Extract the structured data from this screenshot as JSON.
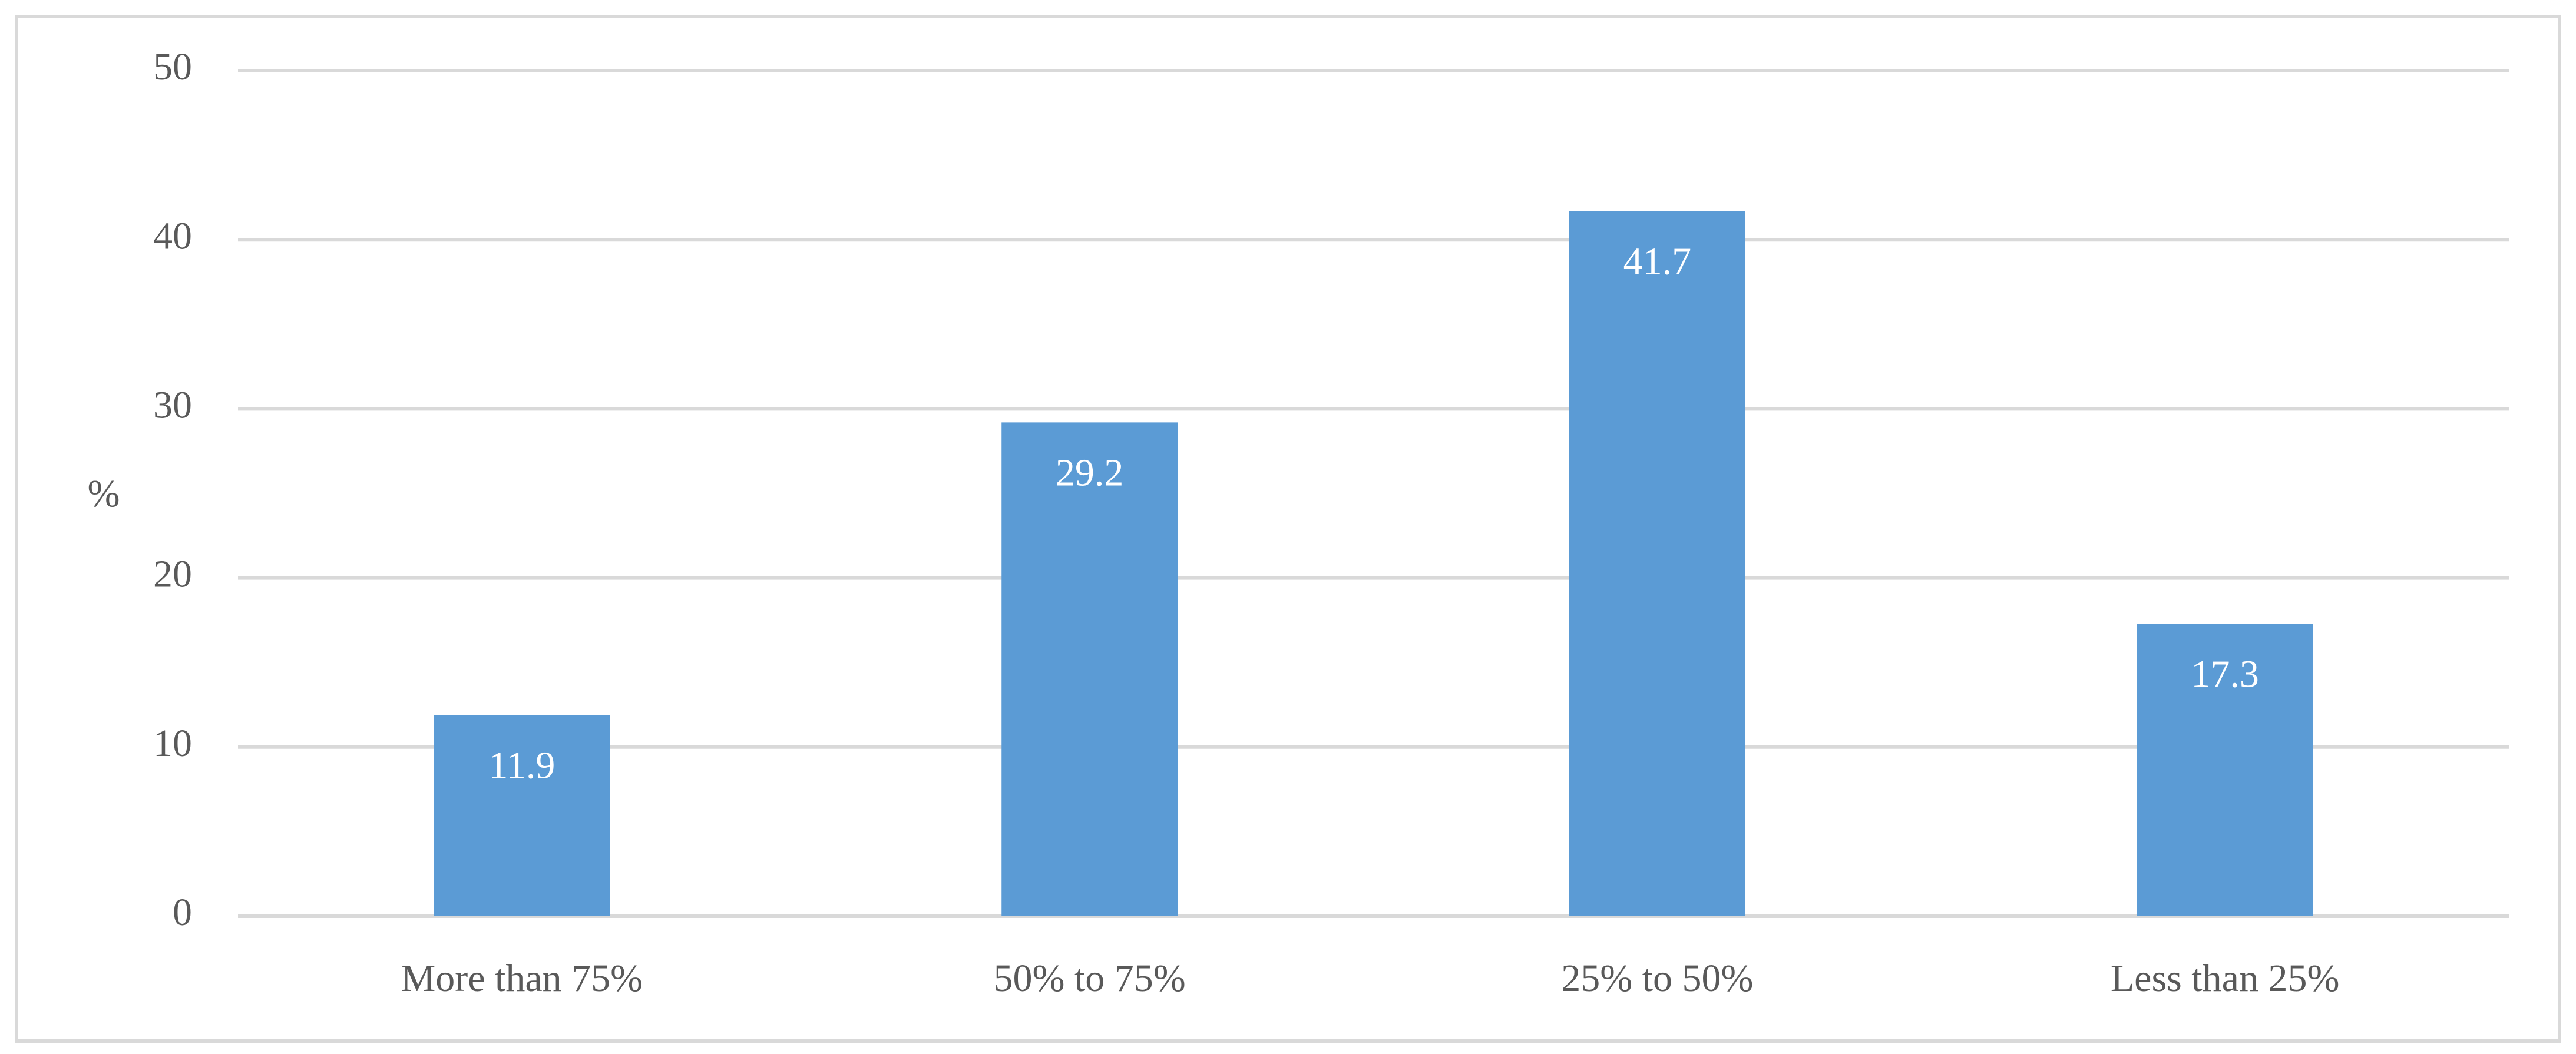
{
  "chart_data": {
    "type": "bar",
    "y_label": "%",
    "categories": [
      "More than 75%",
      "50% to 75%",
      "25% to 50%",
      "Less than 25%"
    ],
    "values": [
      11.9,
      29.2,
      41.7,
      17.3
    ],
    "color": "#5b9bd5",
    "ylim": [
      0,
      50
    ],
    "yticks": [
      0,
      10,
      20,
      30,
      40,
      50
    ],
    "grid": true
  }
}
